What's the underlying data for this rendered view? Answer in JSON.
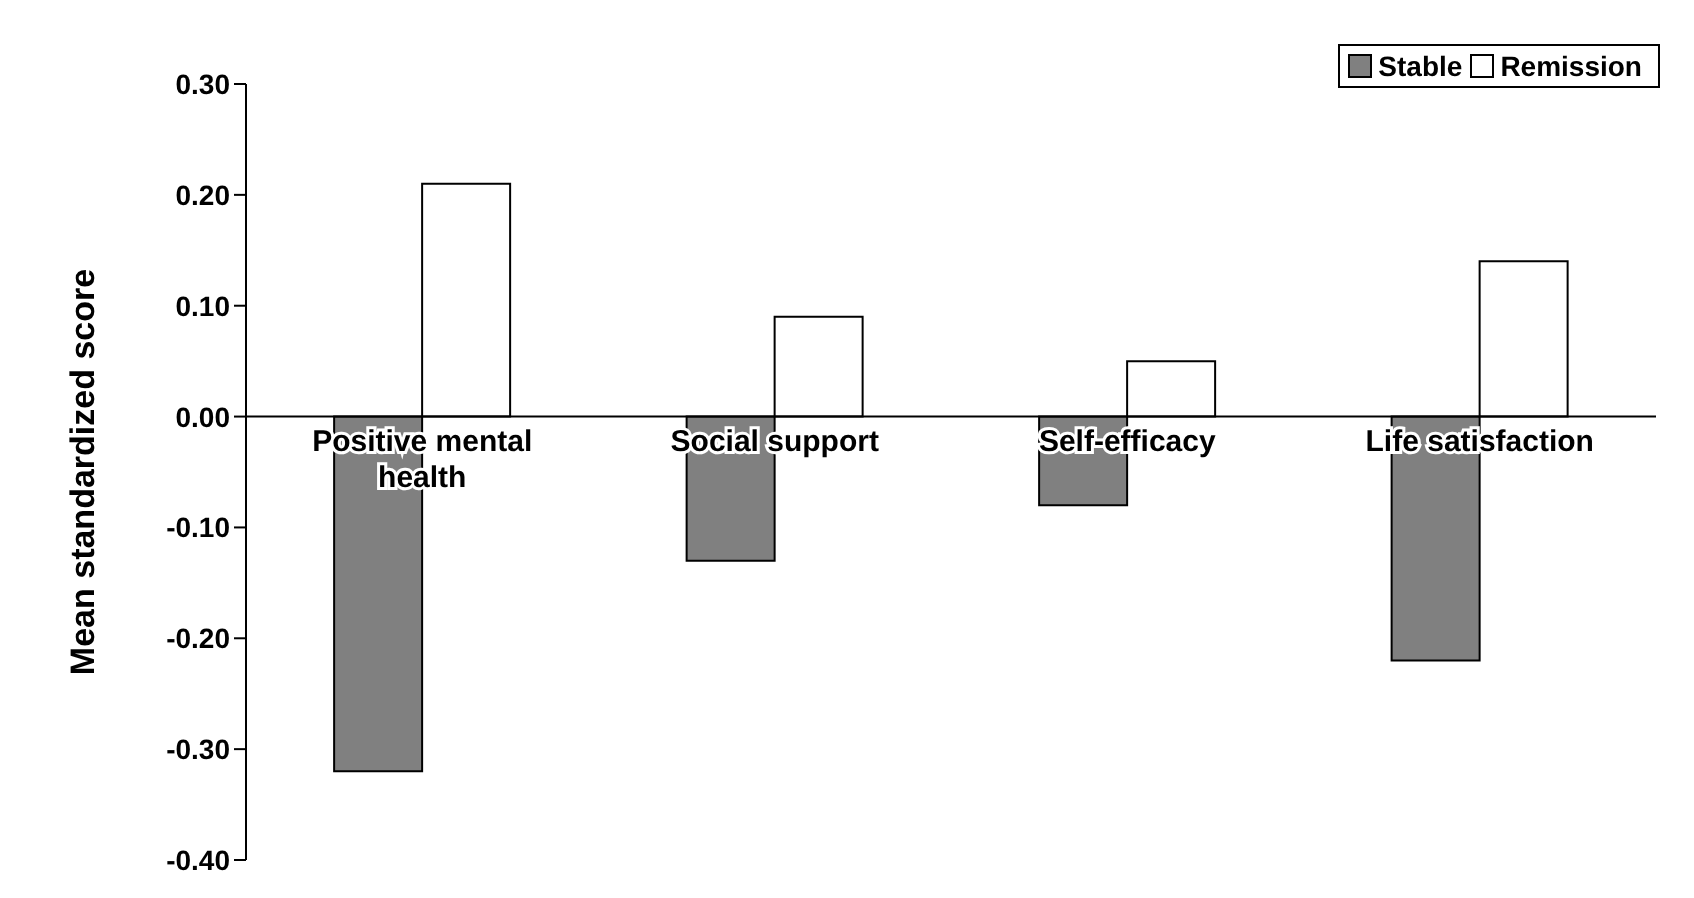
{
  "chart_data": {
    "type": "bar",
    "ylabel": "Mean standardized score",
    "categories": [
      "Positive mental health",
      "Social support",
      "Self-efficacy",
      "Life satisfaction"
    ],
    "series": [
      {
        "name": "Stable",
        "color": "#808080",
        "values": [
          -0.32,
          -0.13,
          -0.08,
          -0.22
        ]
      },
      {
        "name": "Remission",
        "color": "#ffffff",
        "values": [
          0.21,
          0.09,
          0.05,
          0.14
        ]
      }
    ],
    "ylim": [
      -0.4,
      0.3
    ],
    "yticks": [
      {
        "value": -0.4,
        "label": "-0.40"
      },
      {
        "value": -0.3,
        "label": "-0.30"
      },
      {
        "value": -0.2,
        "label": "-0.20"
      },
      {
        "value": -0.1,
        "label": "-0.10"
      },
      {
        "value": 0,
        "label": "0.00"
      },
      {
        "value": 0.1,
        "label": "0.10"
      },
      {
        "value": 0.2,
        "label": "0.20"
      },
      {
        "value": 0.3,
        "label": "0.30"
      }
    ],
    "grid": false,
    "legend": "top right"
  }
}
